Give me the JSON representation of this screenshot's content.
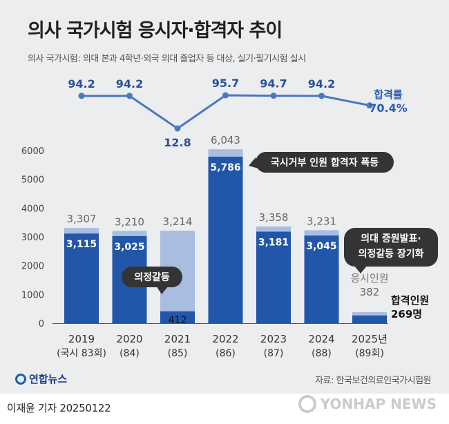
{
  "title": "의사 국가시험 응시자·합격자 추이",
  "subtitle": "의사 국가시험: 의대 본과 4학년·외국 의대 졸업자 등 대상, 실기·필기시험 실시",
  "chart_data": {
    "type": "bar",
    "categories": [
      "2019",
      "2020",
      "2021",
      "2022",
      "2023",
      "2024",
      "2025년"
    ],
    "category_sublabels": [
      "(국시 83회)",
      "(84)",
      "(85)",
      "(86)",
      "(87)",
      "(88)",
      "(89회)"
    ],
    "series": [
      {
        "name": "응시인원",
        "values": [
          3307,
          3210,
          3214,
          6043,
          3358,
          3231,
          382
        ],
        "color": "#a9bde0"
      },
      {
        "name": "합격인원",
        "values": [
          3115,
          3025,
          412,
          5786,
          3181,
          3045,
          269
        ],
        "color": "#2156a8"
      }
    ],
    "pass_rate": {
      "name": "합격률",
      "values": [
        94.2,
        94.2,
        12.8,
        95.7,
        94.7,
        94.2,
        70.4
      ],
      "last_label": "70.4%",
      "color": "#4a78c2"
    },
    "last_pass_label": "269명",
    "ylim": [
      0,
      6000
    ],
    "yticks": [
      0,
      1000,
      2000,
      3000,
      4000,
      5000,
      6000
    ],
    "grid": false,
    "annotations": [
      "국시거부 인원 합격자 폭등",
      "의대 증원발표·",
      "의정갈등 장기화",
      "의정갈등"
    ]
  },
  "logo": "연합뉴스",
  "source": "자료: 한국보건의료인국가시험원",
  "byline": "이재윤 기자  20250122",
  "watermark": "YONHAP NEWS"
}
